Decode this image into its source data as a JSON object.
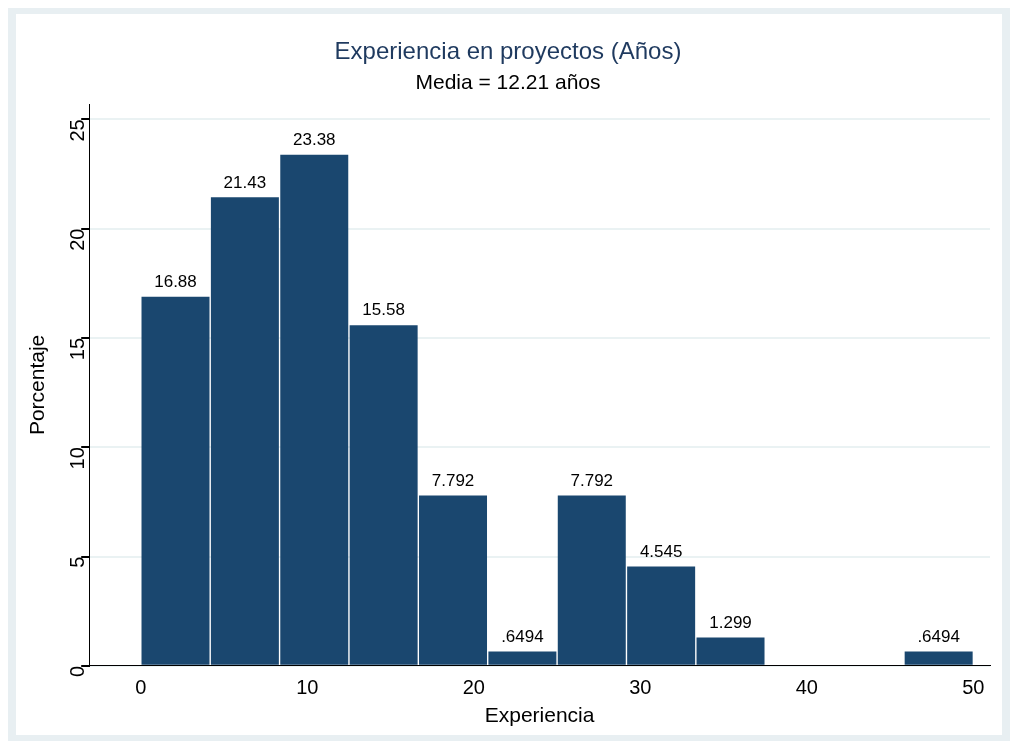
{
  "chart_data": {
    "type": "histogram",
    "title": "Experiencia en proyectos (Años)",
    "subtitle": "Media = 12.21 años",
    "xlabel": "Experiencia",
    "ylabel": "Porcentaje",
    "bins": [
      0,
      4.1667,
      8.3333,
      12.5,
      16.6667,
      20.8333,
      25,
      29.1667,
      33.3333,
      37.5,
      41.6667,
      45.8333,
      50
    ],
    "values": [
      16.88,
      21.43,
      23.38,
      15.58,
      7.792,
      0.6494,
      7.792,
      4.545,
      1.299,
      0,
      0,
      0.6494
    ],
    "value_labels": [
      "16.88",
      "21.43",
      "23.38",
      "15.58",
      "7.792",
      ".6494",
      "7.792",
      "4.545",
      "1.299",
      null,
      null,
      ".6494"
    ],
    "color": "#1a476f",
    "xlim": [
      -3.1,
      51
    ],
    "xticks": [
      0,
      10,
      20,
      30,
      40,
      50
    ],
    "ylim": [
      0,
      25.7
    ],
    "yticks": [
      0,
      5,
      10,
      15,
      20,
      25
    ],
    "grid": "y",
    "legend": false
  }
}
